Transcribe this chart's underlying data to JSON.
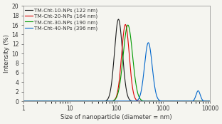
{
  "title": "",
  "xlabel": "Size of nanoparticle (diameter = nm)",
  "ylabel": "Intensity (%)",
  "xlim": [
    1,
    10000
  ],
  "ylim": [
    0,
    20
  ],
  "yticks": [
    0,
    2,
    4,
    6,
    8,
    10,
    12,
    14,
    16,
    18,
    20
  ],
  "xticks": [
    1,
    10,
    100,
    1000,
    10000
  ],
  "series": [
    {
      "label": "TM-Cht-10-NPs (122 nm)",
      "color": "#1a1a1a",
      "mean": 110,
      "sigma_log": 0.085,
      "peak": 17.2
    },
    {
      "label": "TM-Cht-20-NPs (164 nm)",
      "color": "#dd0000",
      "mean": 155,
      "sigma_log": 0.082,
      "peak": 16.1
    },
    {
      "label": "TM-Cht-30-NPs (190 nm)",
      "color": "#009900",
      "mean": 175,
      "sigma_log": 0.1,
      "peak": 16.0
    },
    {
      "label": "TM-Cht-40-NPs (396 nm)",
      "color": "#0066cc",
      "mean": 480,
      "sigma_log": 0.082,
      "peak": 12.3
    }
  ],
  "small_peak": {
    "color": "#0066cc",
    "mean": 5600,
    "sigma_log": 0.045,
    "peak": 2.2
  },
  "background_color": "#f5f5f0",
  "legend_fontsize": 5.2,
  "axis_fontsize": 6.0,
  "tick_fontsize": 5.5
}
